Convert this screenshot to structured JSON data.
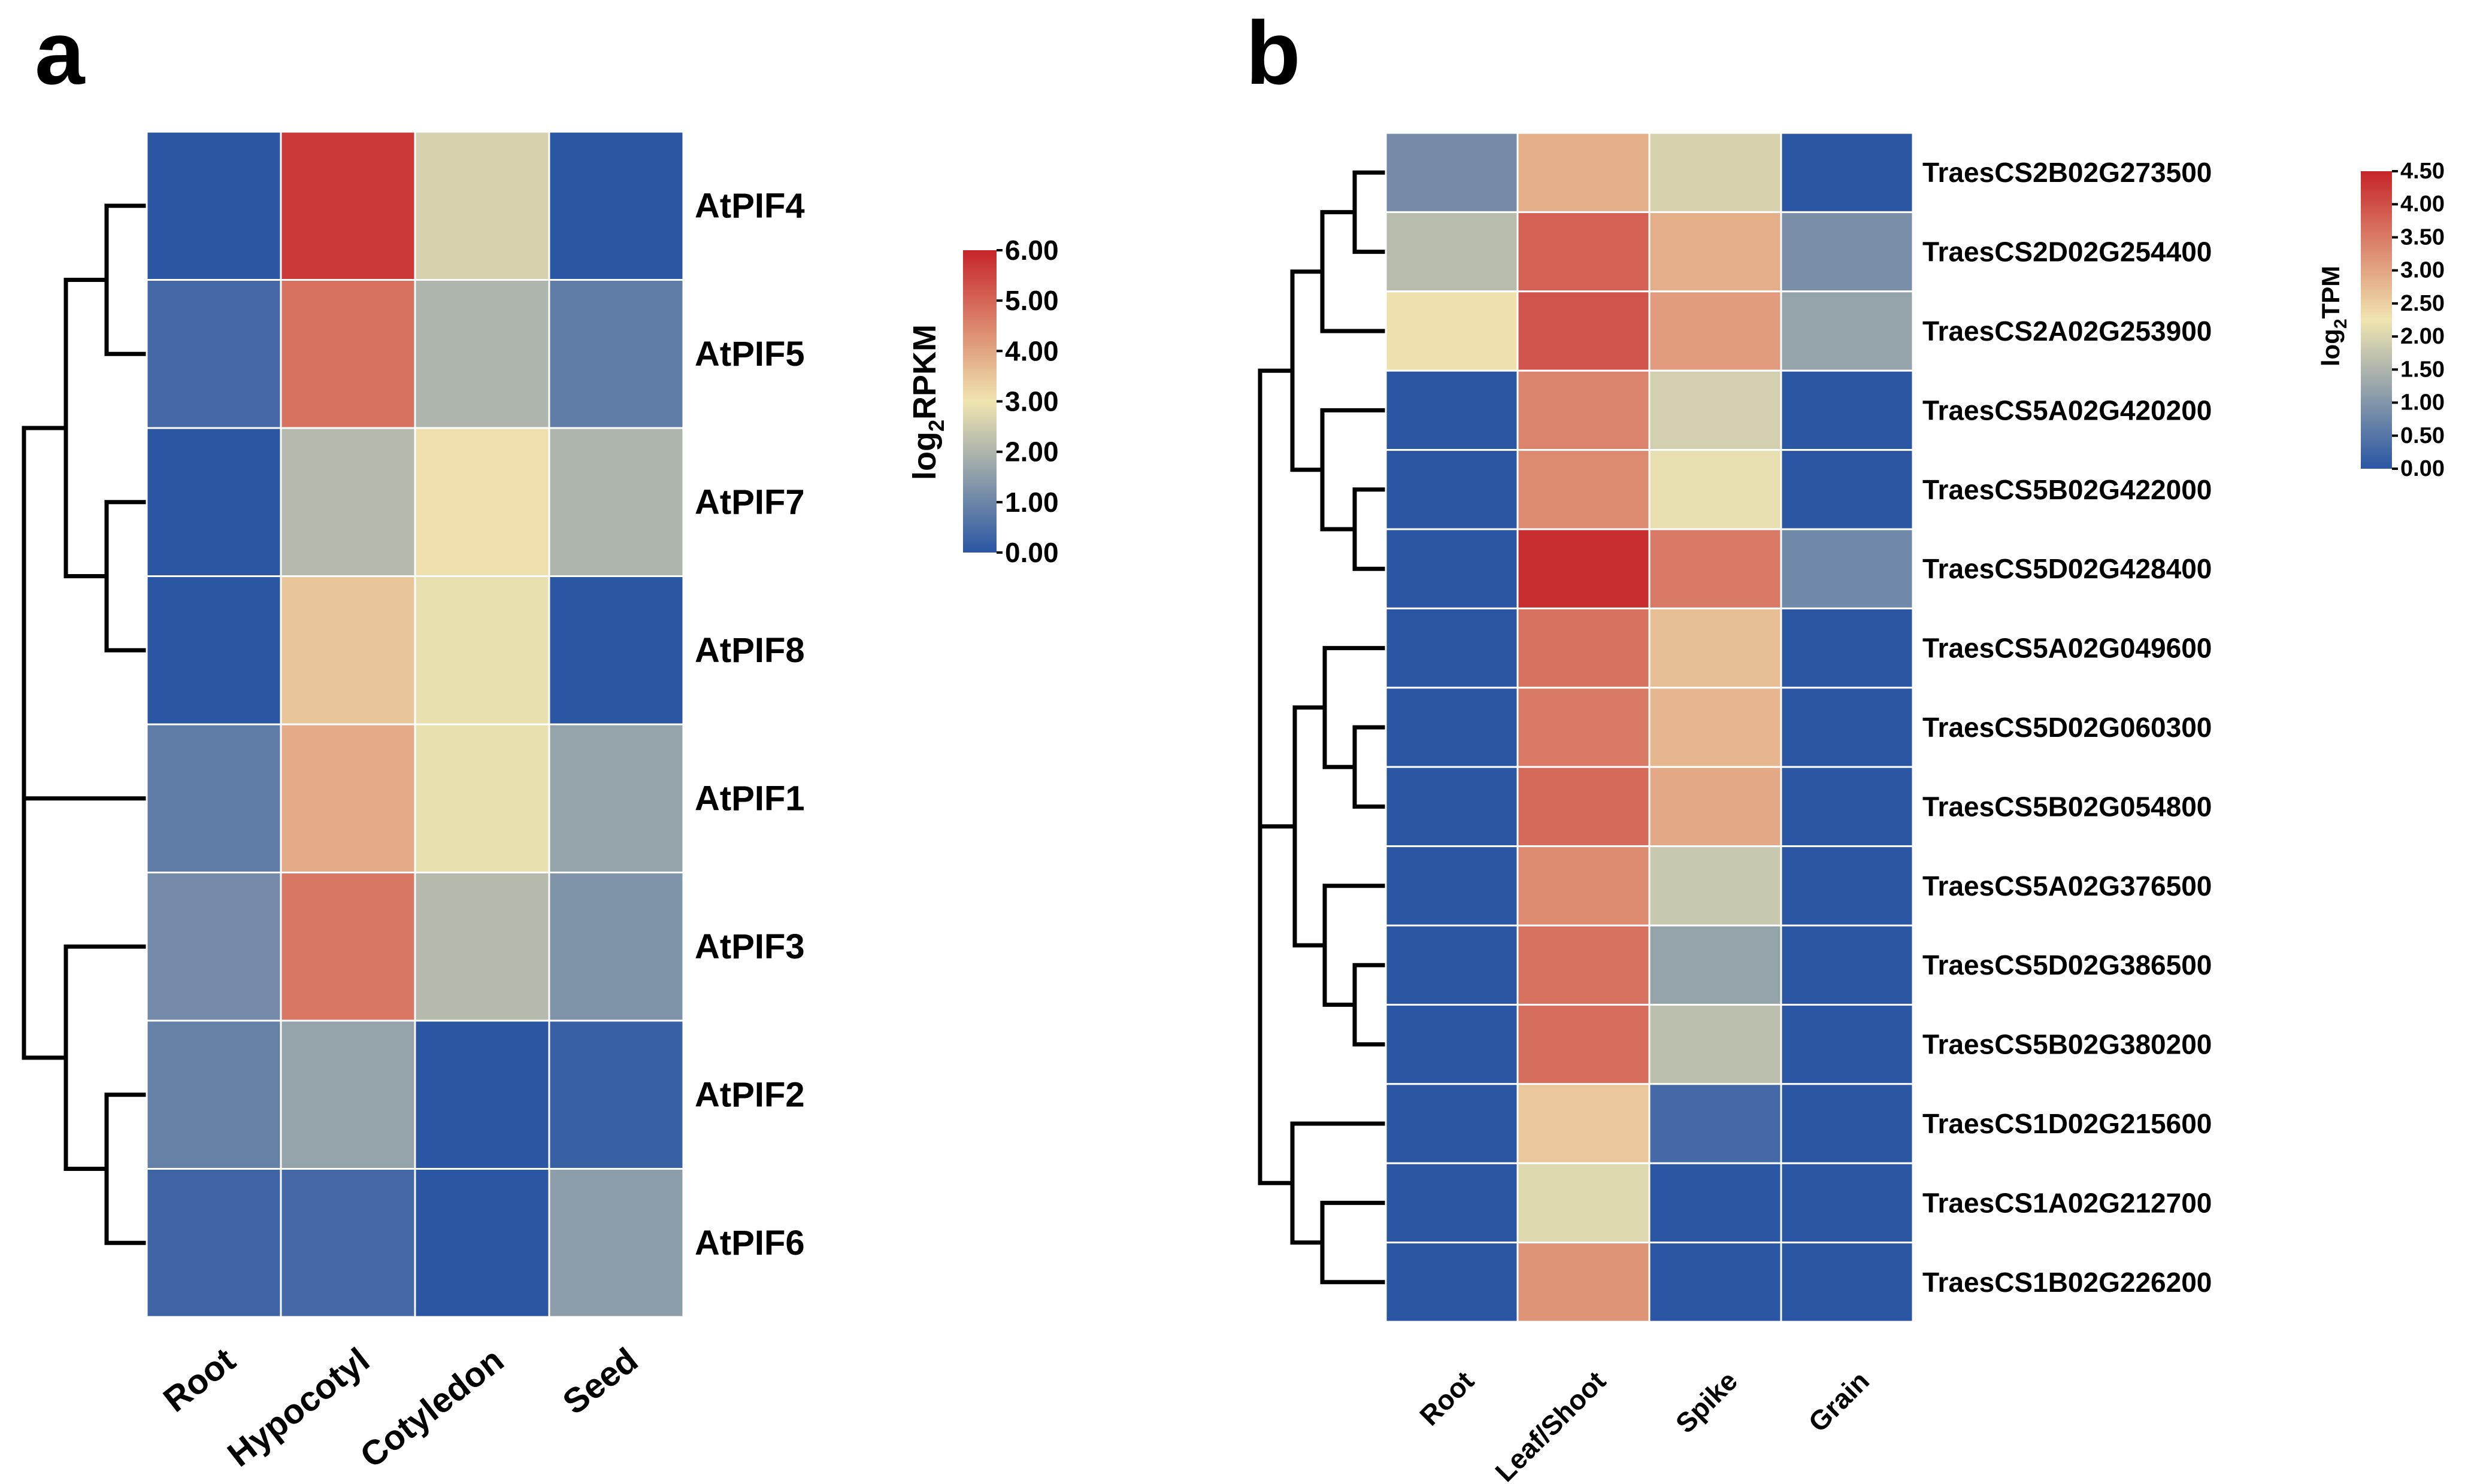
{
  "chart_data": [
    {
      "type": "heatmap",
      "panel_label": "a",
      "rows": [
        "AtPIF4",
        "AtPIF5",
        "AtPIF7",
        "AtPIF8",
        "AtPIF1",
        "AtPIF3",
        "AtPIF2",
        "AtPIF6"
      ],
      "columns": [
        "Root",
        "Hypocotyl",
        "Cotyledon",
        "Seed"
      ],
      "values": [
        [
          0.0,
          5.7,
          2.6,
          0.0
        ],
        [
          0.4,
          4.8,
          2.0,
          0.8
        ],
        [
          0.0,
          2.1,
          3.1,
          2.0
        ],
        [
          0.0,
          3.5,
          2.9,
          0.0
        ],
        [
          0.8,
          3.9,
          2.9,
          1.6
        ],
        [
          1.1,
          4.7,
          2.1,
          1.3
        ],
        [
          0.9,
          1.6,
          0.0,
          0.2
        ],
        [
          0.3,
          0.4,
          0.0,
          1.5
        ]
      ],
      "colorbar": {
        "title": "log2RPKM",
        "title_main": "log",
        "title_sub": "2",
        "title_rest": "RPKM",
        "range": [
          0,
          6
        ],
        "tick_values": [
          0,
          1,
          2,
          3,
          4,
          5,
          6
        ],
        "tick_labels": [
          "0.00",
          "1.00",
          "2.00",
          "3.00",
          "4.00",
          "5.00",
          "6.00"
        ]
      },
      "colorscale": [
        "#2a56a4",
        "#f0e5b0",
        "#c6252a"
      ],
      "dendrogram": "left"
    },
    {
      "type": "heatmap",
      "panel_label": "b",
      "rows": [
        "TraesCS2B02G273500",
        "TraesCS2D02G254400",
        "TraesCS2A02G253900",
        "TraesCS5A02G420200",
        "TraesCS5B02G422000",
        "TraesCS5D02G428400",
        "TraesCS5A02G049600",
        "TraesCS5D02G060300",
        "TraesCS5B02G054800",
        "TraesCS5A02G376500",
        "TraesCS5D02G386500",
        "TraesCS5B02G380200",
        "TraesCS1D02G215600",
        "TraesCS1A02G212700",
        "TraesCS1B02G226200"
      ],
      "columns": [
        "Root",
        "Leaf/Shoot",
        "Spike",
        "Grain"
      ],
      "values": [
        [
          0.85,
          2.9,
          1.95,
          0.0
        ],
        [
          1.6,
          3.8,
          2.9,
          0.9
        ],
        [
          2.3,
          3.95,
          3.1,
          1.2
        ],
        [
          0.0,
          3.4,
          1.9,
          0.0
        ],
        [
          0.0,
          3.3,
          2.15,
          0.0
        ],
        [
          0.0,
          4.4,
          3.5,
          0.8
        ],
        [
          0.0,
          3.6,
          2.7,
          0.0
        ],
        [
          0.0,
          3.5,
          2.8,
          0.0
        ],
        [
          0.0,
          3.7,
          2.95,
          0.0
        ],
        [
          0.0,
          3.3,
          1.8,
          0.0
        ],
        [
          0.0,
          3.6,
          1.2,
          0.0
        ],
        [
          0.0,
          3.65,
          1.65,
          0.0
        ],
        [
          0.0,
          2.6,
          0.3,
          0.0
        ],
        [
          0.0,
          2.05,
          0.0,
          0.0
        ],
        [
          0.0,
          3.2,
          0.0,
          0.0
        ]
      ],
      "colorbar": {
        "title": "log2TPM",
        "title_main": "log",
        "title_sub": "2",
        "title_rest": "TPM",
        "range": [
          0,
          4.5
        ],
        "tick_values": [
          0,
          0.5,
          1,
          1.5,
          2,
          2.5,
          3,
          3.5,
          4,
          4.5
        ],
        "tick_labels": [
          "0.00",
          "0.50",
          "1.00",
          "1.50",
          "2.00",
          "2.50",
          "3.00",
          "3.50",
          "4.00",
          "4.50"
        ]
      },
      "colorscale": [
        "#2a56a4",
        "#f0e5b0",
        "#c6252a"
      ],
      "dendrogram": "left"
    }
  ]
}
